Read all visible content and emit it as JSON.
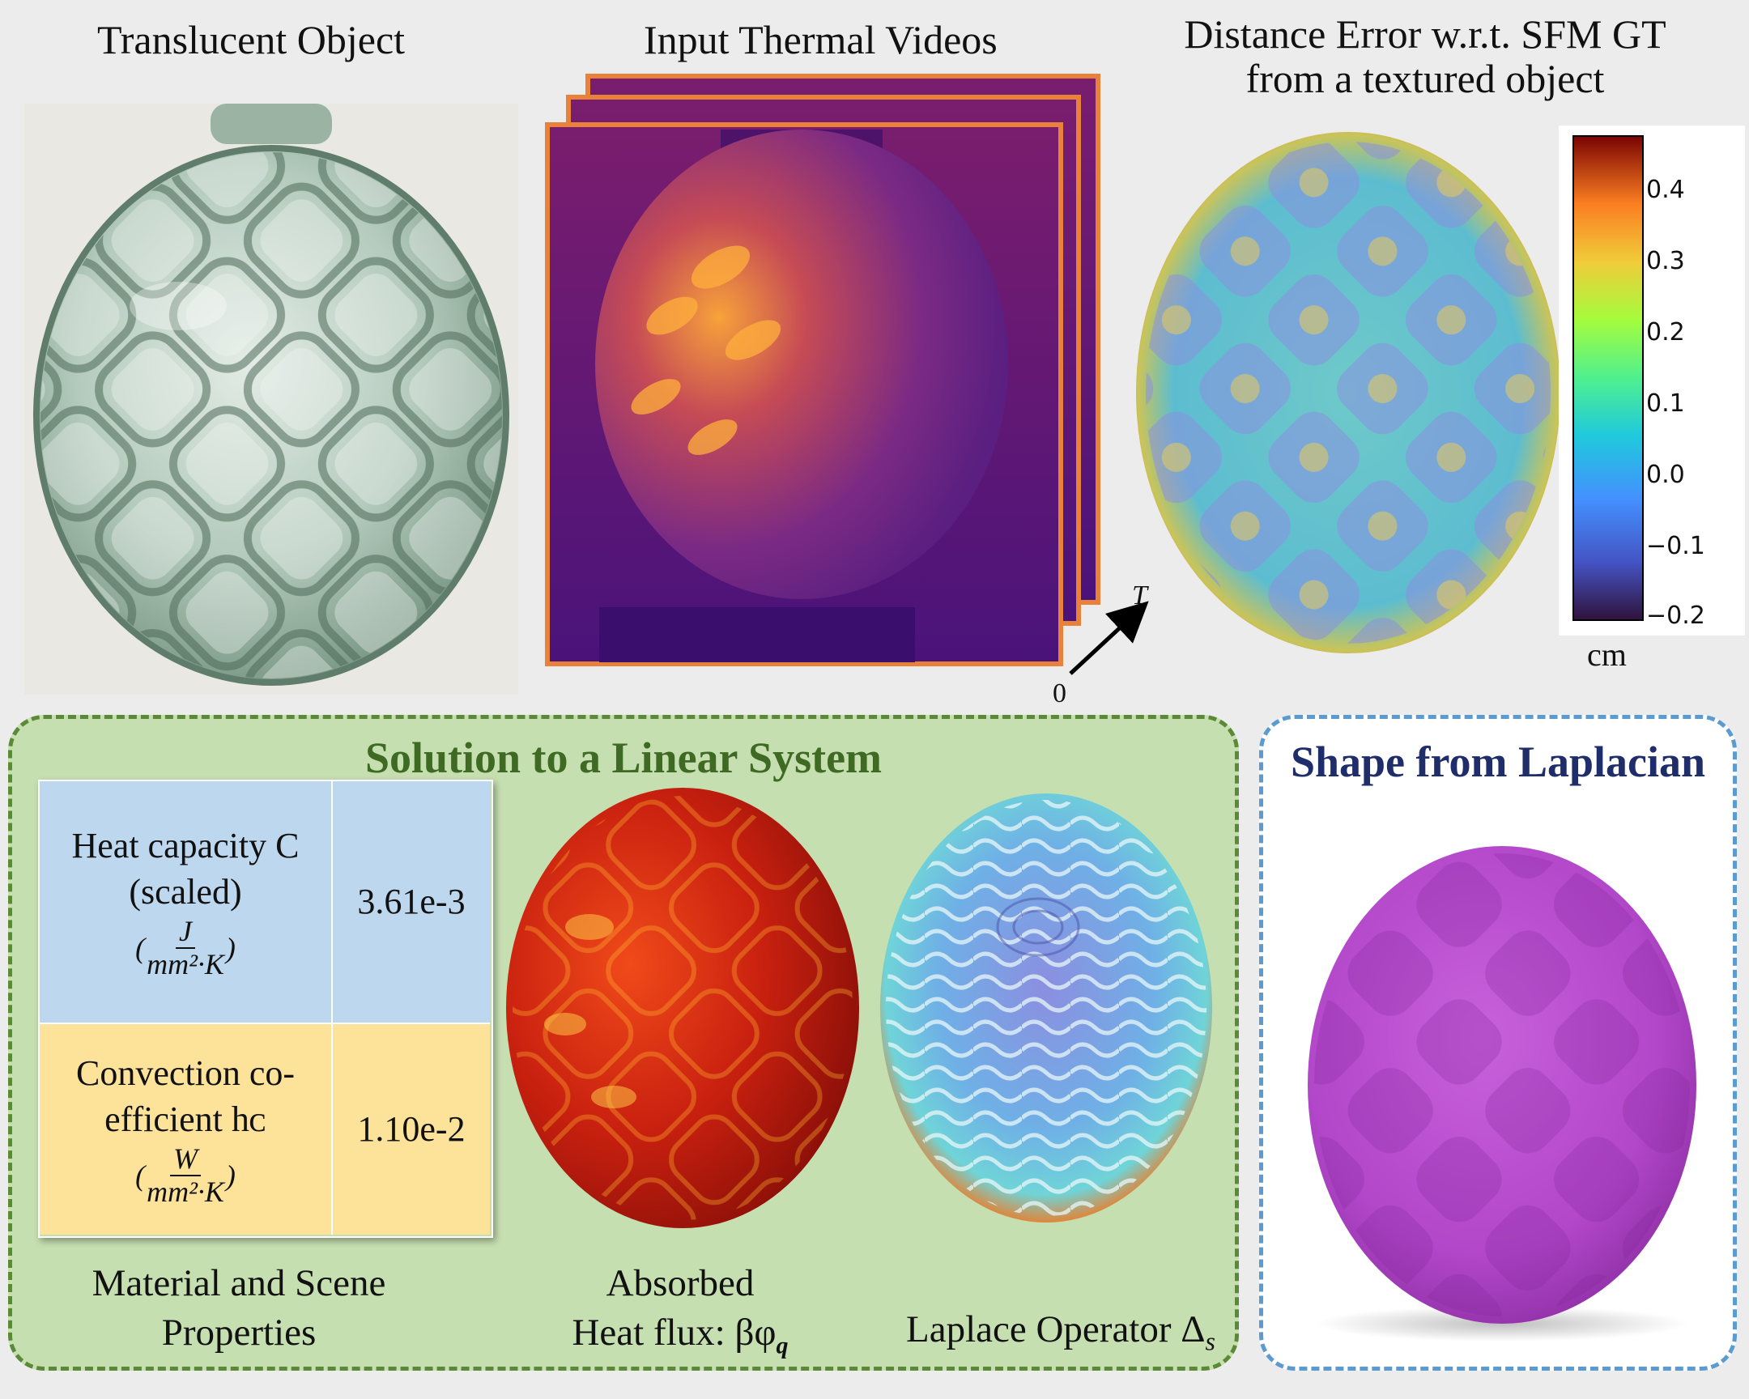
{
  "titles": {
    "translucent": "Translucent Object",
    "thermal": "Input Thermal Videos",
    "distance_line1": "Distance Error w.r.t. SFM GT",
    "distance_line2": "from a textured object"
  },
  "time_axis": {
    "start": "0",
    "end": "T"
  },
  "colorbar": {
    "ticks": [
      "0.4",
      "0.3",
      "0.2",
      "0.1",
      "0.0",
      "−0.1",
      "−0.2"
    ],
    "unit": "cm"
  },
  "linear_system": {
    "title": "Solution to a Linear System",
    "table": {
      "row1": {
        "label_line1": "Heat capacity C",
        "label_line2": "(scaled)",
        "unit_num": "J",
        "unit_den": "mm²·K",
        "value": "3.61e-3"
      },
      "row2": {
        "label_line1": "Convection co-",
        "label_line2": "efficient hᴄ",
        "unit_num": "W",
        "unit_den": "mm²·K",
        "value": "1.10e-2"
      }
    },
    "captions": {
      "material_line1": "Material and Scene",
      "material_line2": "Properties",
      "absorbed_line1": "Absorbed",
      "absorbed_line2": "Heat flux: βφ",
      "absorbed_sub": "q",
      "laplace": "Laplace Operator Δ",
      "laplace_sub": "s"
    }
  },
  "shape_panel": {
    "title": "Shape from Laplacian"
  },
  "colors": {
    "green_fill": "#c6dfb1",
    "green_border": "#5a8a35",
    "blue_border": "#5b9bd0",
    "shape_title": "#1f2d6b",
    "linear_title": "#3f6a24",
    "row1_fill": "#bdd7ee",
    "row2_fill": "#fde39a",
    "frame_orange": "#e8823a",
    "shape_magenta": "#b84bcf"
  }
}
